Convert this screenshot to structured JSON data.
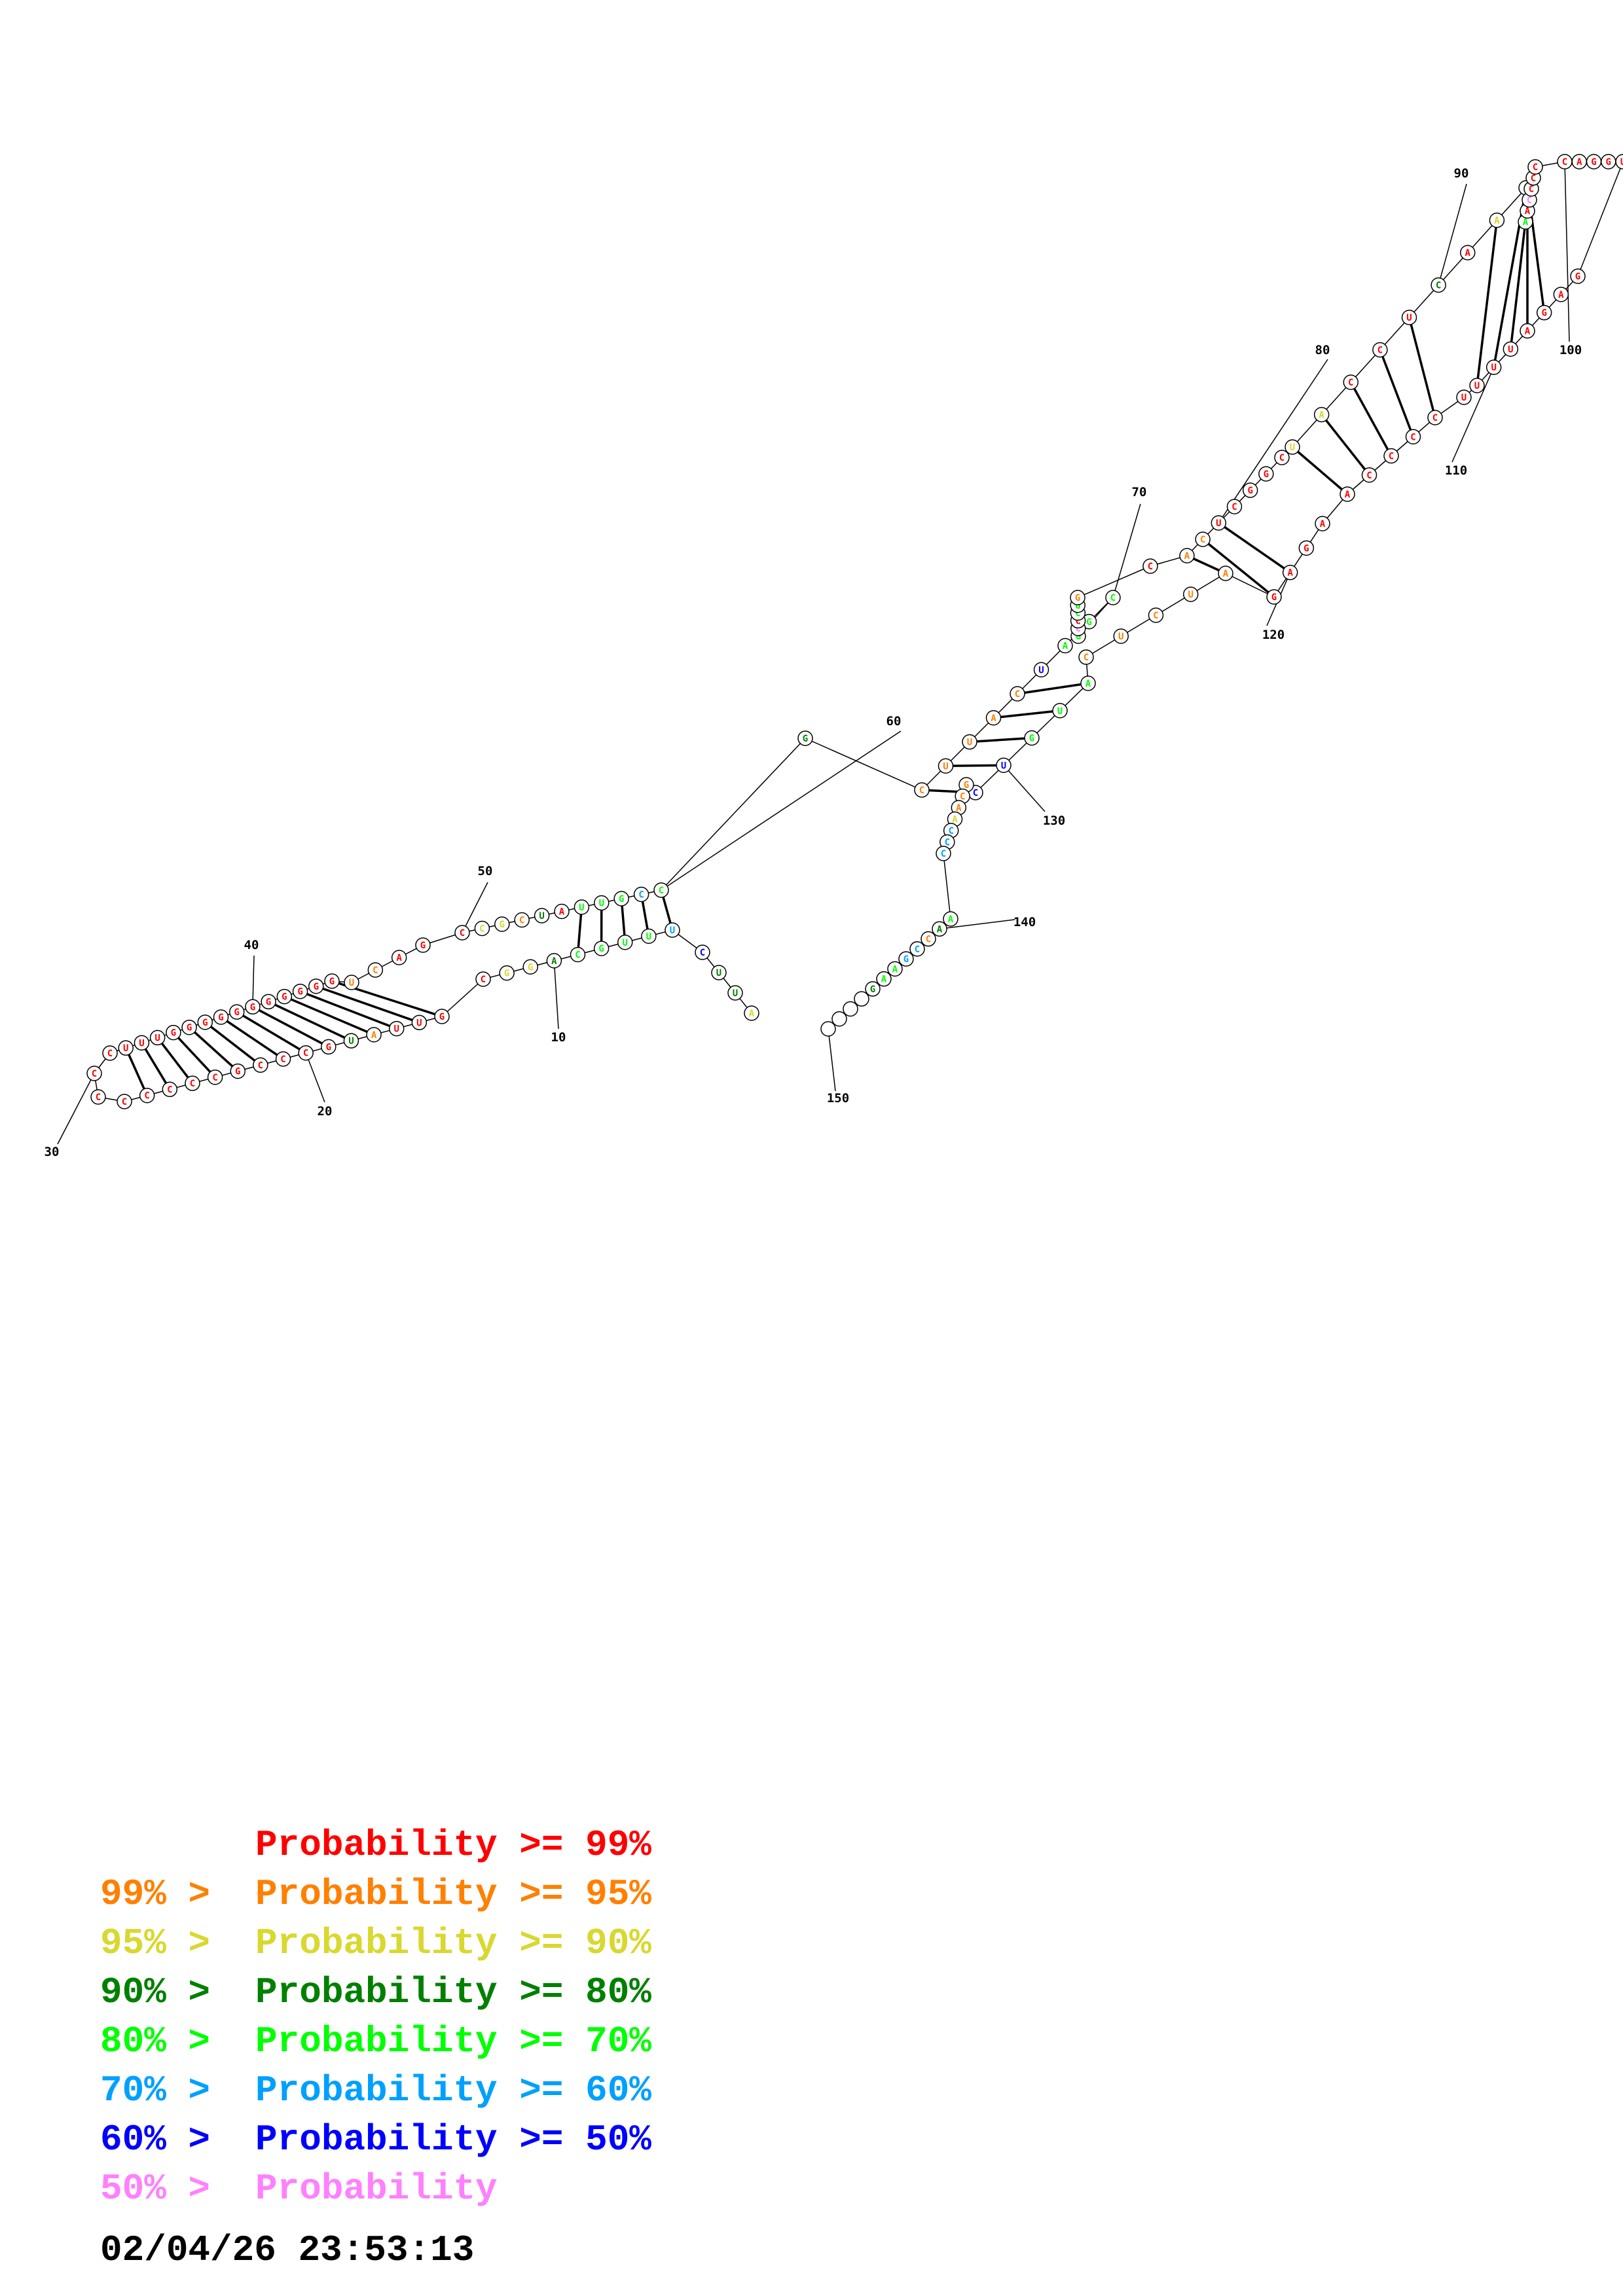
{
  "sequence": "AUUCUUUGCAGGCGUUAUGCCCGCCCCCCCCUUUGGGGGGGGGGGUCAGCCGCUAUUGCCGCUUACUAGCGCCCGGCACUCGGCUACCUCAAAAACCCCCAGGUGAGAUUUUCCCCAAGAGAUCUCAUGUCGCAACCCAACCGAAG",
  "legend": [
    {
      "prefix": "",
      "label": "Probability >= 99%",
      "color": "#ff0000"
    },
    {
      "prefix": "99% > ",
      "label": "Probability >= 95%",
      "color": "#ff8000"
    },
    {
      "prefix": "95% > ",
      "label": "Probability >= 90%",
      "color": "#d8d830"
    },
    {
      "prefix": "90% > ",
      "label": "Probability >= 80%",
      "color": "#008000"
    },
    {
      "prefix": "80% > ",
      "label": "Probability >= 70%",
      "color": "#00ff00"
    },
    {
      "prefix": "70% > ",
      "label": "Probability >= 60%",
      "color": "#00a0ff"
    },
    {
      "prefix": "60% > ",
      "label": "Probability >= 50%",
      "color": "#0000ff"
    },
    {
      "prefix": "50% > ",
      "label": "Probability",
      "color": "#ff80ff"
    }
  ],
  "timestamp": "02/04/26 23:53:13",
  "position_labels": [
    "10",
    "20",
    "30",
    "40",
    "50",
    "60",
    "70",
    "80",
    "90",
    "100",
    "110",
    "120",
    "130",
    "140",
    "150"
  ]
}
